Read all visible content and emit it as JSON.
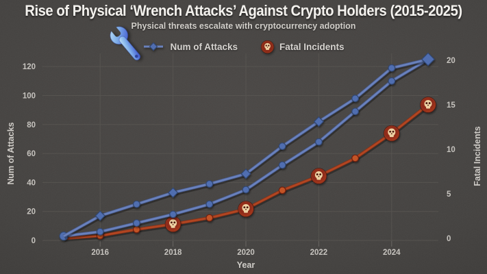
{
  "title": "Rise of Physical ‘Wrench Attacks’ Against Crypto Holders (2015-2025)",
  "subtitle": "Physical threats escalate with cryptocurrency adoption",
  "legend": {
    "attacks_label": "Num of Attacks",
    "fatal_label": "Fatal Incidents"
  },
  "icons": {
    "wrench": "wrench-icon",
    "skull": "skull-icon",
    "attacks_marker": "blue-diamond-line-marker"
  },
  "colors": {
    "accent_blue": "#6880bc",
    "blue_marker": "#4e6cb0",
    "accent_red": "#b0431f",
    "skull_badge": "#8c2713",
    "skull_bone": "#eed2a2",
    "title_text": "#f5f3ef",
    "tick_text": "#c7c4bf",
    "grid": "#56534f"
  },
  "chart_data": {
    "type": "line",
    "x": [
      2015,
      2016,
      2017,
      2018,
      2019,
      2020,
      2021,
      2022,
      2023,
      2024,
      2025
    ],
    "xlabel": "Year",
    "x_tick_labels": [
      "2016",
      "2018",
      "2020",
      "2022",
      "2024"
    ],
    "grid": true,
    "legend_position": "top",
    "left_axis": {
      "label": "Num of Attacks",
      "ticks": [
        0,
        20,
        40,
        60,
        80,
        100,
        120
      ],
      "range": [
        0,
        130
      ]
    },
    "right_axis": {
      "label": "Fatal Incidents",
      "ticks": [
        0,
        5,
        10,
        15,
        20
      ],
      "range": [
        0,
        21.5
      ]
    },
    "series": [
      {
        "name": "Fatal Incidents",
        "axis": "right",
        "color": "#b0431f",
        "marker_color": "#c35120",
        "edge": "#6e1d0b",
        "under": "#8a2c10",
        "values": [
          0,
          0.3,
          1,
          1.6,
          2.3,
          3.3,
          5.4,
          7,
          9,
          11.8,
          15
        ],
        "markers": [
          "none",
          "circle",
          "circle",
          "skull",
          "circle",
          "skull",
          "circle",
          "skull",
          "circle",
          "skull",
          "skull"
        ]
      },
      {
        "name": "Num of Attacks (lower trace)",
        "axis": "left",
        "color": "#6880bc",
        "marker_color": "#4e6cb0",
        "edge": "#2e4470",
        "under": "#45598f",
        "values": [
          3,
          6,
          12,
          18,
          25,
          35,
          52,
          68,
          89,
          110,
          125
        ],
        "markers": [
          "circle-large",
          "circle",
          "circle",
          "circle",
          "circle",
          "circle",
          "circle",
          "circle",
          "circle",
          "circle",
          "none"
        ]
      },
      {
        "name": "Num of Attacks",
        "axis": "left",
        "color": "#6880bc",
        "marker_color": "#4e6cb0",
        "edge": "#2e4470",
        "under": "#45598f",
        "values": [
          3,
          17,
          25,
          33,
          39,
          46,
          65,
          82,
          98,
          119,
          125
        ],
        "markers": [
          "none",
          "diamond",
          "circle",
          "diamond",
          "circle",
          "diamond",
          "circle",
          "diamond",
          "circle",
          "circle",
          "diamond-large"
        ]
      }
    ]
  }
}
